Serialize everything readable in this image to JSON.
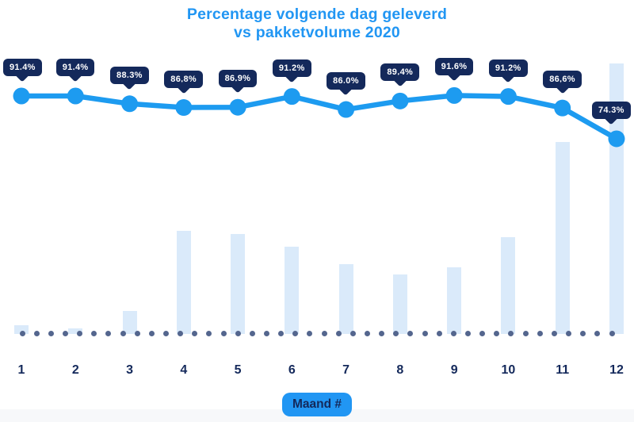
{
  "chart_data": {
    "type": "line+bar",
    "title": "Percentage volgende dag geleverd\nvs pakketvolume 2020",
    "categories": [
      "1",
      "2",
      "3",
      "4",
      "5",
      "6",
      "7",
      "8",
      "9",
      "10",
      "11",
      "12"
    ],
    "xlabel": "Maand #",
    "grid": false,
    "legend": false,
    "series": [
      {
        "name": "Percentage volgende dag geleverd",
        "type": "line",
        "unit": "%",
        "values": [
          91.4,
          91.4,
          88.3,
          86.8,
          86.9,
          91.2,
          86.0,
          89.4,
          91.6,
          91.2,
          86.6,
          74.3
        ],
        "point_labels": [
          "91,4%",
          "91,4%",
          "88,3%",
          "86,8%",
          "86,9%",
          "91,2%",
          "86,0%",
          "89,4%",
          "91,6%",
          "91,2%",
          "86,6%",
          "74,3%"
        ]
      },
      {
        "name": "Pakketvolume 2020",
        "type": "bar",
        "unit": "relative index (tallest bar = 100, no value axis shown)",
        "values": [
          3.2,
          2.1,
          8.5,
          38.1,
          37.0,
          32.3,
          25.8,
          22.0,
          24.6,
          35.8,
          71.0,
          100.0
        ]
      }
    ],
    "notes": "dotted baseline of small slate dots runs beneath the bars"
  },
  "colors": {
    "title_blue": "#2196f3",
    "line_blue": "#1d9bf0",
    "badge_navy": "#14295b",
    "bar_fill": "#daeafa",
    "baseline_dot": "#54668e",
    "xaxis_badge_bg": "#2196f3",
    "bottom_band": "#f7f8fa"
  }
}
